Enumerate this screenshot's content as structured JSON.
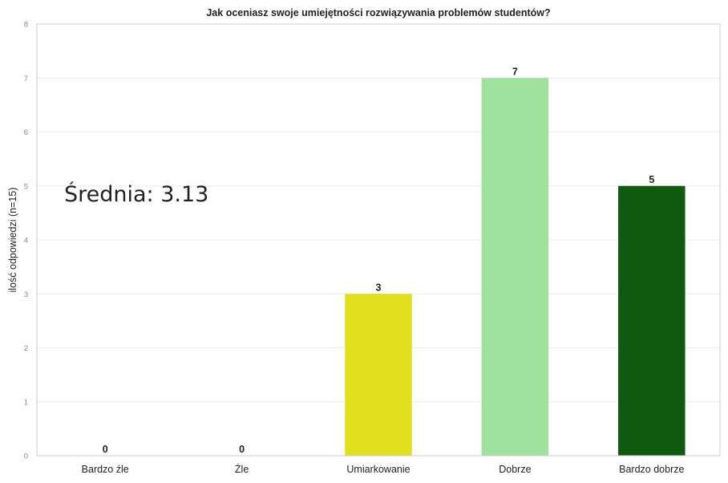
{
  "chart_data": {
    "type": "bar",
    "title": "Jak oceniasz swoje umiejętności rozwiązywania problemów studentów?",
    "xlabel": "",
    "ylabel": "ilość odpowiedzi (n=15)",
    "categories": [
      "Bardzo źle",
      "Źle",
      "Umiarkowanie",
      "Dobrze",
      "Bardzo dobrze"
    ],
    "values": [
      0,
      0,
      3,
      7,
      5
    ],
    "data_labels": [
      "0",
      "0",
      "3",
      "7",
      "5"
    ],
    "colors": [
      "#d62728",
      "#f0a0a0",
      "#e0e01e",
      "#9ee29e",
      "#0f5a0f"
    ],
    "ylim": [
      0,
      8
    ],
    "yticks": [
      "0",
      "1",
      "2",
      "3",
      "4",
      "5",
      "6",
      "7",
      "8"
    ],
    "grid": true,
    "annotation": "Średnia: 3.13"
  }
}
